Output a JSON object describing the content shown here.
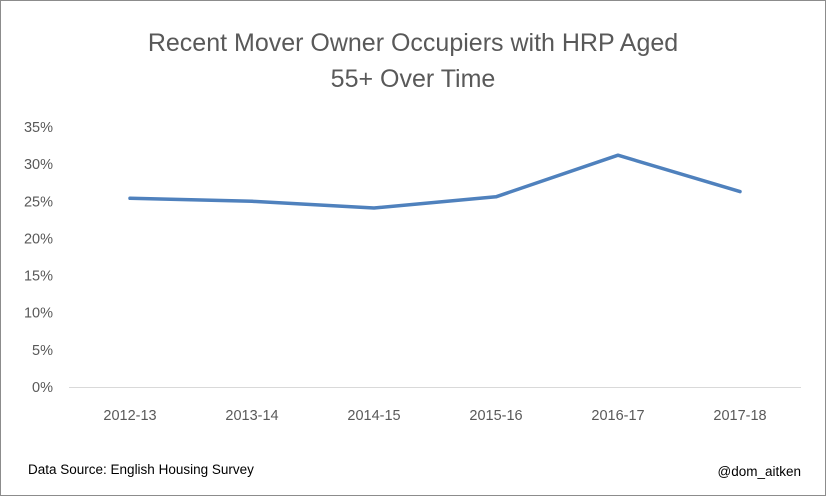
{
  "chart_data": {
    "type": "line",
    "title_lines": [
      "Recent Mover Owner Occupiers with HRP Aged",
      "55+ Over Time"
    ],
    "categories": [
      "2012-13",
      "2013-14",
      "2014-15",
      "2015-16",
      "2016-17",
      "2017-18"
    ],
    "series": [
      {
        "values": [
          25.4,
          25.0,
          24.1,
          25.6,
          31.2,
          26.3
        ],
        "color": "#4f81bd"
      }
    ],
    "yticks": [
      "0%",
      "5%",
      "10%",
      "15%",
      "20%",
      "25%",
      "30%",
      "35%"
    ],
    "ylim": [
      0,
      35
    ],
    "grid": false,
    "legend": "none"
  },
  "footer": {
    "source": "Data Source: English Housing Survey",
    "credit": "@dom_aitken"
  }
}
